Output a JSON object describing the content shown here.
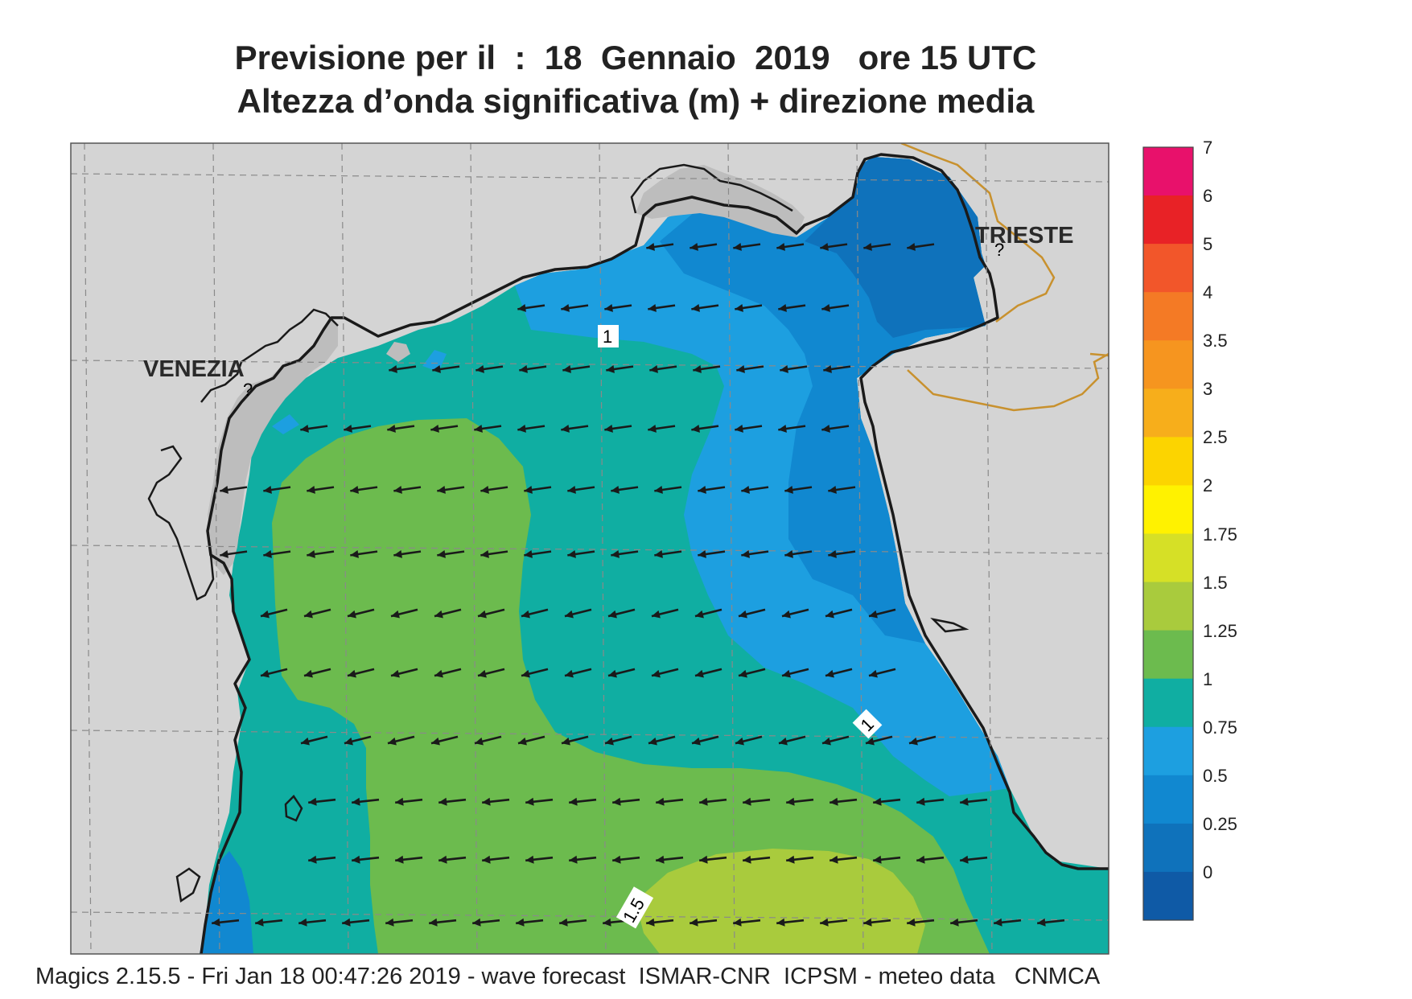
{
  "title": {
    "line1": "Previsione per il  :  18  Gennaio  2019   ore 15 UTC",
    "line2": "Altezza d’onda significativa (m) + direzione media"
  },
  "cities": {
    "venezia": "VENEZIA",
    "trieste": "TRIESTE"
  },
  "contour_labels": [
    "1",
    "1",
    "1.5"
  ],
  "colorbar": {
    "ticks": [
      "7",
      "6",
      "5",
      "4",
      "3.5",
      "3",
      "2.5",
      "2",
      "1.75",
      "1.5",
      "1.25",
      "1",
      "0.75",
      "0.5",
      "0.25",
      "0"
    ],
    "colors": [
      "#e8116b",
      "#e82226",
      "#f2562a",
      "#f47a25",
      "#f6951f",
      "#f7ae1b",
      "#fcd400",
      "#fff200",
      "#d6e026",
      "#a9cb3d",
      "#6cbb4e",
      "#10aea2",
      "#1d9fe0",
      "#1188d0",
      "#0f72bb",
      "#0f5aa6"
    ]
  },
  "colors": {
    "land": "#d4d4d4",
    "lagoon": "#bdbdbd",
    "h_0_25_0_5": "#0f72bb",
    "h_0_5_0_75": "#1188d0",
    "h_0_75_1": "#1d9fe0",
    "h_1_1_25": "#10aea2",
    "h_1_25_1_5": "#6cbb4e",
    "h_1_5_1_75": "#a9cb3d",
    "coast": "#1a1a1a",
    "border": "#c8912e",
    "arrow": "#1a1a1a"
  },
  "footer": "Magics 2.15.5 - Fri Jan 18 00:47:26 2019 - wave forecast  ISMAR-CNR  ICPSM - meteo data   CNMCA"
}
